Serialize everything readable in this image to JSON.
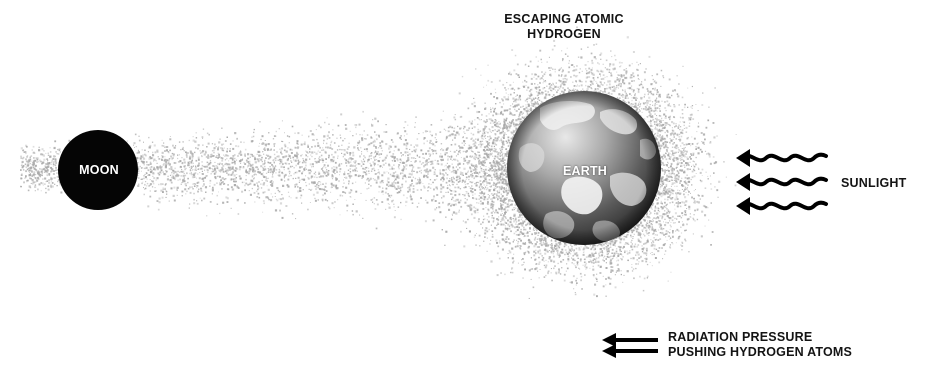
{
  "labels": {
    "hydrogen_line1": "ESCAPING ATOMIC",
    "hydrogen_line2": "HYDROGEN",
    "moon": "MOON",
    "earth": "EARTH",
    "sunlight": "SUNLIGHT",
    "pressure_line1": "RADIATION PRESSURE",
    "pressure_line2": "PUSHING HYDROGEN ATOMS"
  },
  "colors": {
    "moon": "#050505",
    "earth_light": "#e4e4e4",
    "earth_dark": "#2a2a2a",
    "land": "#f2f2f2",
    "hydrogen_dots": "#a8a8a8",
    "arrows": "#000000",
    "text": "#141414"
  },
  "icons": {
    "sunlight": "wavy-arrow-left-icon",
    "radiation_pressure": "double-arrow-left-icon"
  }
}
